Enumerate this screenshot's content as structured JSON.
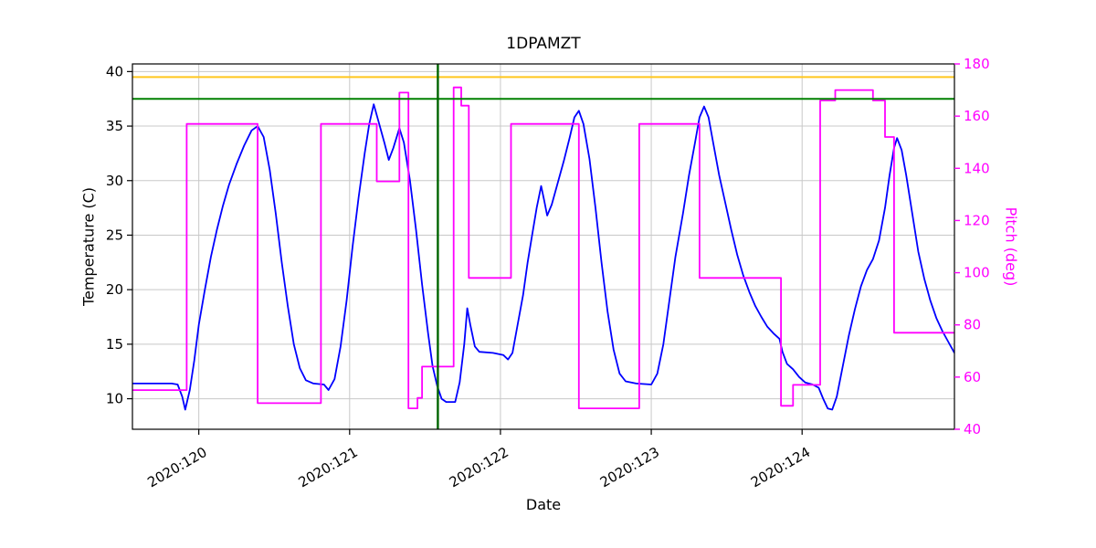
{
  "chart_data": {
    "type": "line",
    "title": "1DPAMZT",
    "xlabel": "Date",
    "ylabel_left": "Temperature (C)",
    "ylabel_right": "Pitch (deg)",
    "grid": true,
    "legend": "none",
    "xlim": [
      119.56,
      125.01
    ],
    "ylim_left": [
      7.2,
      40.7
    ],
    "ylim_right": [
      40,
      180
    ],
    "x_ticks": {
      "values": [
        120,
        121,
        122,
        123,
        124
      ],
      "labels": [
        "2020:120",
        "2020:121",
        "2020:122",
        "2020:123",
        "2020:124"
      ]
    },
    "y_ticks_left": [
      10,
      15,
      20,
      25,
      30,
      35,
      40
    ],
    "y_ticks_right": [
      40,
      60,
      80,
      100,
      120,
      140,
      160,
      180
    ],
    "colors": {
      "temperature": "#0000ff",
      "pitch": "#ff00ff",
      "yellow_limit": "#ffc61e",
      "green_limit": "#008000",
      "time_marker": "#006400",
      "grid": "#c8c8c8",
      "axis": "#000000",
      "right_axis_text": "#ff00ff"
    },
    "annotations": {
      "yellow_limit_temp": 39.5,
      "green_limit_temp": 37.5,
      "vline_date": 121.585
    },
    "series": [
      {
        "name": "temperature",
        "axis": "left",
        "color": "#0000ff",
        "points": [
          [
            119.56,
            11.4
          ],
          [
            119.82,
            11.4
          ],
          [
            119.86,
            11.3
          ],
          [
            119.89,
            10.2
          ],
          [
            119.91,
            9.0
          ],
          [
            119.94,
            10.8
          ],
          [
            119.97,
            13.5
          ],
          [
            120.0,
            16.8
          ],
          [
            120.04,
            20.0
          ],
          [
            120.08,
            23.0
          ],
          [
            120.12,
            25.5
          ],
          [
            120.16,
            27.7
          ],
          [
            120.2,
            29.6
          ],
          [
            120.25,
            31.5
          ],
          [
            120.3,
            33.2
          ],
          [
            120.35,
            34.6
          ],
          [
            120.39,
            35.0
          ],
          [
            120.43,
            34.0
          ],
          [
            120.47,
            31.0
          ],
          [
            120.51,
            27.0
          ],
          [
            120.55,
            22.5
          ],
          [
            120.59,
            18.5
          ],
          [
            120.63,
            15.0
          ],
          [
            120.67,
            12.8
          ],
          [
            120.71,
            11.7
          ],
          [
            120.76,
            11.4
          ],
          [
            120.83,
            11.3
          ],
          [
            120.86,
            10.8
          ],
          [
            120.9,
            11.8
          ],
          [
            120.94,
            14.8
          ],
          [
            120.98,
            19.0
          ],
          [
            121.02,
            24.0
          ],
          [
            121.06,
            28.5
          ],
          [
            121.1,
            32.5
          ],
          [
            121.13,
            35.2
          ],
          [
            121.16,
            37.0
          ],
          [
            121.19,
            35.5
          ],
          [
            121.23,
            33.5
          ],
          [
            121.26,
            31.9
          ],
          [
            121.29,
            33.0
          ],
          [
            121.33,
            34.8
          ],
          [
            121.36,
            33.5
          ],
          [
            121.4,
            30.0
          ],
          [
            121.44,
            25.5
          ],
          [
            121.48,
            20.5
          ],
          [
            121.52,
            16.0
          ],
          [
            121.55,
            13.0
          ],
          [
            121.58,
            11.2
          ],
          [
            121.61,
            10.0
          ],
          [
            121.64,
            9.7
          ],
          [
            121.7,
            9.7
          ],
          [
            121.73,
            11.5
          ],
          [
            121.76,
            15.0
          ],
          [
            121.78,
            18.3
          ],
          [
            121.8,
            16.8
          ],
          [
            121.83,
            14.8
          ],
          [
            121.86,
            14.3
          ],
          [
            121.95,
            14.2
          ],
          [
            122.02,
            14.0
          ],
          [
            122.05,
            13.6
          ],
          [
            122.08,
            14.2
          ],
          [
            122.11,
            16.5
          ],
          [
            122.15,
            19.5
          ],
          [
            122.18,
            22.5
          ],
          [
            122.21,
            25.0
          ],
          [
            122.24,
            27.5
          ],
          [
            122.27,
            29.5
          ],
          [
            122.29,
            28.2
          ],
          [
            122.31,
            26.8
          ],
          [
            122.34,
            27.8
          ],
          [
            122.38,
            29.8
          ],
          [
            122.42,
            31.8
          ],
          [
            122.46,
            34.0
          ],
          [
            122.49,
            35.8
          ],
          [
            122.52,
            36.4
          ],
          [
            122.55,
            35.2
          ],
          [
            122.59,
            32.0
          ],
          [
            122.63,
            27.5
          ],
          [
            122.67,
            22.5
          ],
          [
            122.71,
            18.0
          ],
          [
            122.75,
            14.5
          ],
          [
            122.79,
            12.3
          ],
          [
            122.83,
            11.6
          ],
          [
            122.9,
            11.4
          ],
          [
            123.0,
            11.3
          ],
          [
            123.04,
            12.3
          ],
          [
            123.08,
            15.0
          ],
          [
            123.12,
            19.0
          ],
          [
            123.16,
            23.0
          ],
          [
            123.21,
            27.0
          ],
          [
            123.25,
            30.5
          ],
          [
            123.29,
            33.5
          ],
          [
            123.32,
            35.8
          ],
          [
            123.35,
            36.8
          ],
          [
            123.38,
            35.8
          ],
          [
            123.41,
            33.5
          ],
          [
            123.45,
            30.5
          ],
          [
            123.49,
            28.0
          ],
          [
            123.53,
            25.5
          ],
          [
            123.57,
            23.2
          ],
          [
            123.61,
            21.3
          ],
          [
            123.65,
            19.8
          ],
          [
            123.69,
            18.5
          ],
          [
            123.73,
            17.5
          ],
          [
            123.77,
            16.6
          ],
          [
            123.81,
            16.0
          ],
          [
            123.85,
            15.5
          ],
          [
            123.87,
            14.3
          ],
          [
            123.9,
            13.2
          ],
          [
            123.94,
            12.7
          ],
          [
            123.98,
            12.0
          ],
          [
            124.02,
            11.5
          ],
          [
            124.07,
            11.3
          ],
          [
            124.11,
            11.0
          ],
          [
            124.14,
            10.0
          ],
          [
            124.17,
            9.1
          ],
          [
            124.2,
            9.0
          ],
          [
            124.23,
            10.2
          ],
          [
            124.27,
            13.0
          ],
          [
            124.31,
            15.8
          ],
          [
            124.35,
            18.2
          ],
          [
            124.39,
            20.3
          ],
          [
            124.43,
            21.8
          ],
          [
            124.47,
            22.8
          ],
          [
            124.51,
            24.5
          ],
          [
            124.55,
            27.5
          ],
          [
            124.58,
            30.5
          ],
          [
            124.61,
            33.0
          ],
          [
            124.63,
            33.9
          ],
          [
            124.66,
            32.8
          ],
          [
            124.69,
            30.5
          ],
          [
            124.73,
            27.0
          ],
          [
            124.77,
            23.5
          ],
          [
            124.81,
            21.0
          ],
          [
            124.85,
            19.0
          ],
          [
            124.89,
            17.4
          ],
          [
            124.93,
            16.2
          ],
          [
            124.97,
            15.2
          ],
          [
            125.01,
            14.2
          ]
        ]
      },
      {
        "name": "pitch",
        "axis": "right",
        "color": "#ff00ff",
        "points": [
          [
            119.56,
            55
          ],
          [
            119.92,
            55
          ],
          [
            119.92,
            157
          ],
          [
            120.39,
            157
          ],
          [
            120.39,
            50
          ],
          [
            120.81,
            50
          ],
          [
            120.81,
            157
          ],
          [
            121.18,
            157
          ],
          [
            121.18,
            135
          ],
          [
            121.33,
            135
          ],
          [
            121.33,
            169
          ],
          [
            121.39,
            169
          ],
          [
            121.39,
            48
          ],
          [
            121.45,
            48
          ],
          [
            121.45,
            52
          ],
          [
            121.48,
            52
          ],
          [
            121.48,
            64
          ],
          [
            121.69,
            64
          ],
          [
            121.69,
            171
          ],
          [
            121.74,
            171
          ],
          [
            121.74,
            164
          ],
          [
            121.79,
            164
          ],
          [
            121.79,
            98
          ],
          [
            122.07,
            98
          ],
          [
            122.07,
            157
          ],
          [
            122.52,
            157
          ],
          [
            122.52,
            48
          ],
          [
            122.92,
            48
          ],
          [
            122.92,
            157
          ],
          [
            123.32,
            157
          ],
          [
            123.32,
            98
          ],
          [
            123.86,
            98
          ],
          [
            123.86,
            49
          ],
          [
            123.94,
            49
          ],
          [
            123.94,
            57
          ],
          [
            124.12,
            57
          ],
          [
            124.12,
            166
          ],
          [
            124.22,
            166
          ],
          [
            124.22,
            170
          ],
          [
            124.47,
            170
          ],
          [
            124.47,
            166
          ],
          [
            124.55,
            166
          ],
          [
            124.55,
            152
          ],
          [
            124.61,
            152
          ],
          [
            124.61,
            77
          ],
          [
            125.01,
            77
          ]
        ]
      }
    ]
  }
}
